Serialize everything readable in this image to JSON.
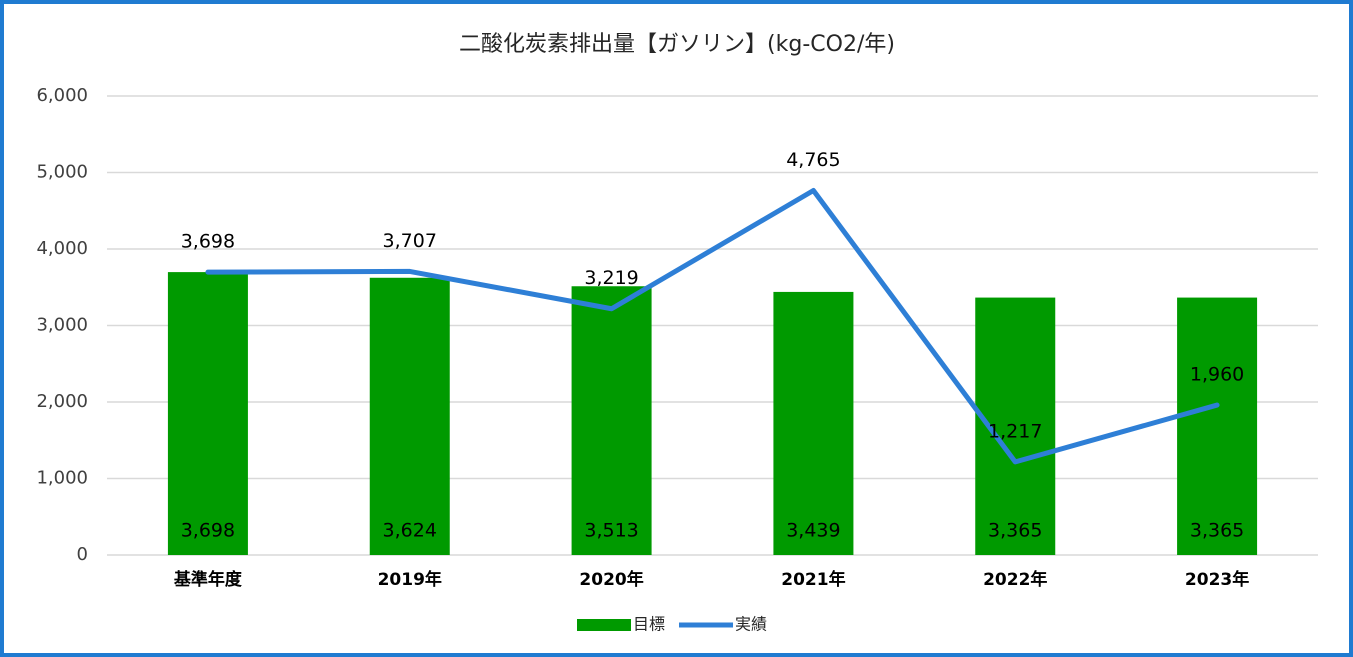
{
  "chart_data": {
    "type": "bar",
    "title": "二酸化炭素排出量【ガソリン】(kg-CO2/年)",
    "categories": [
      "基準年度",
      "2019年",
      "2020年",
      "2021年",
      "2022年",
      "2023年"
    ],
    "series": [
      {
        "name": "目標",
        "type": "bar",
        "color": "#009a00",
        "values": [
          3698,
          3624,
          3513,
          3439,
          3365,
          3365
        ],
        "value_labels": [
          "3,698",
          "3,624",
          "3,513",
          "3,439",
          "3,365",
          "3,365"
        ]
      },
      {
        "name": "実績",
        "type": "line",
        "color": "#2e7fd6",
        "values": [
          3698,
          3707,
          3219,
          4765,
          1217,
          1960
        ],
        "value_labels": [
          "3,698",
          "3,707",
          "3,219",
          "4,765",
          "1,217",
          "1,960"
        ]
      }
    ],
    "ylim": [
      0,
      6000
    ],
    "yticks": [
      0,
      {
        "value": 1000,
        "label": "1,000"
      },
      {
        "value": 2000,
        "label": "2,000"
      },
      {
        "value": 3000,
        "label": "3,000"
      },
      {
        "value": 4000,
        "label": "4,000"
      },
      {
        "value": 5000,
        "label": "5,000"
      },
      {
        "value": 6000,
        "label": "6,000"
      }
    ],
    "grid": true,
    "legend": "bottom"
  }
}
